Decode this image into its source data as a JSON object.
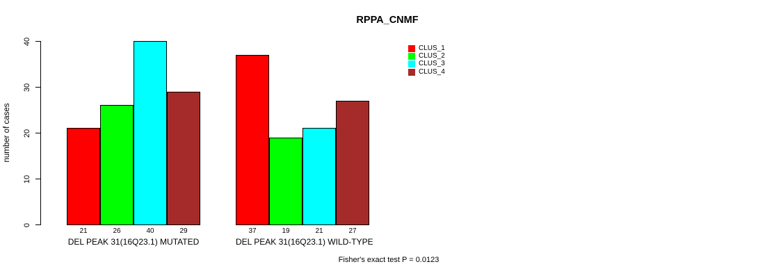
{
  "chart_data": {
    "type": "bar",
    "title": "RPPA_CNMF",
    "ylabel": "number of cases",
    "xlabel": "",
    "ylim": [
      0,
      40
    ],
    "yticks": [
      0,
      10,
      20,
      30,
      40
    ],
    "grid": false,
    "legend_position": "right",
    "series": [
      {
        "name": "CLUS_1",
        "color": "#FF0000"
      },
      {
        "name": "CLUS_2",
        "color": "#00FF00"
      },
      {
        "name": "CLUS_3",
        "color": "#00FFFF"
      },
      {
        "name": "CLUS_4",
        "color": "#A52A2A"
      }
    ],
    "groups": [
      {
        "label": "DEL PEAK 31(16Q23.1) MUTATED",
        "values": [
          21,
          26,
          40,
          29
        ],
        "value_labels": [
          "21",
          "26",
          "40",
          "29"
        ]
      },
      {
        "label": "DEL PEAK 31(16Q23.1) WILD-TYPE",
        "values": [
          37,
          19,
          21,
          27
        ],
        "value_labels": [
          "37",
          "19",
          "21",
          "27"
        ]
      }
    ],
    "annotation": "Fisher's exact test P = 0.0123"
  },
  "colors": {
    "background": "#FFFFFF",
    "axis": "#000000",
    "text": "#000000"
  }
}
